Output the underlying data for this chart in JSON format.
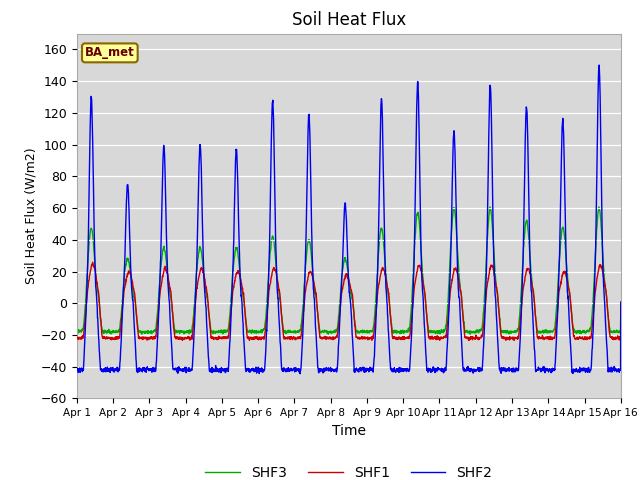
{
  "title": "Soil Heat Flux",
  "xlabel": "Time",
  "ylabel": "Soil Heat Flux (W/m2)",
  "ylim": [
    -60,
    170
  ],
  "yticks": [
    -60,
    -40,
    -20,
    0,
    20,
    40,
    60,
    80,
    100,
    120,
    140,
    160
  ],
  "month": "Apr",
  "colors": {
    "SHF1": "#cc0000",
    "SHF2": "#0000ee",
    "SHF3": "#00aa00"
  },
  "background_color": "#d8d8d8",
  "box_label": "BA_met",
  "box_facecolor": "#ffff99",
  "box_edgecolor": "#886600",
  "box_textcolor": "#660000",
  "linewidth": 1.0,
  "shf2_peaks": [
    130,
    75,
    99,
    100,
    97,
    128,
    119,
    62,
    129,
    139,
    108,
    138,
    124,
    116,
    150
  ],
  "shf1_peaks": [
    25,
    20,
    22,
    22,
    20,
    22,
    20,
    18,
    22,
    24,
    22,
    24,
    22,
    20,
    24
  ],
  "shf3_peaks": [
    47,
    28,
    35,
    35,
    35,
    42,
    40,
    28,
    47,
    57,
    60,
    60,
    52,
    48,
    60
  ],
  "shf2_night": -42,
  "shf1_night": -22,
  "shf3_night": -18,
  "n_days": 15,
  "pts_per_day": 144
}
